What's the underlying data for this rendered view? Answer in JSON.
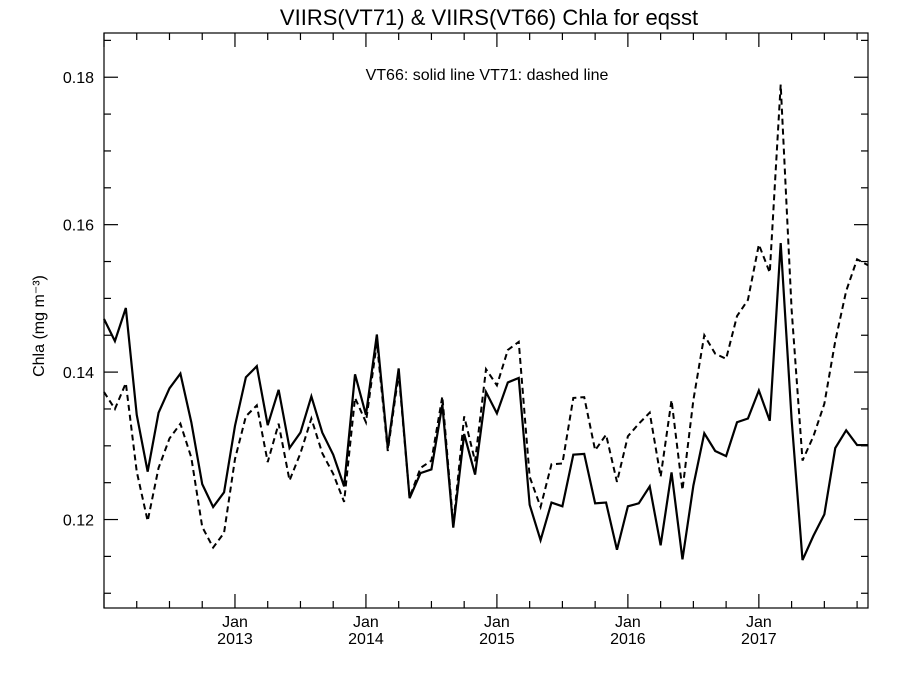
{
  "chart_data": {
    "type": "line",
    "title": "VIIRS(VT71) & VIIRS(VT66)  Chla for eqsst",
    "ylabel": "Chla (mg m⁻³)",
    "ylim": [
      0.108,
      0.186
    ],
    "annotation": "VT66: solid line   VT71: dashed line",
    "x_start": "2012-01",
    "x_end": "2017-11",
    "x_ticks": [
      {
        "month": "Jan",
        "year": "2013",
        "date": "2013-01"
      },
      {
        "month": "Jan",
        "year": "2014",
        "date": "2014-01"
      },
      {
        "month": "Jan",
        "year": "2015",
        "date": "2015-01"
      },
      {
        "month": "Jan",
        "year": "2016",
        "date": "2016-01"
      },
      {
        "month": "Jan",
        "year": "2017",
        "date": "2017-01"
      }
    ],
    "y_ticks": [
      0.12,
      0.14,
      0.16,
      0.18
    ],
    "y_tick_labels": [
      "0.12",
      "0.14",
      "0.16",
      "0.18"
    ],
    "x": [
      "2012-01",
      "2012-02",
      "2012-03",
      "2012-04",
      "2012-05",
      "2012-06",
      "2012-07",
      "2012-08",
      "2012-09",
      "2012-10",
      "2012-11",
      "2012-12",
      "2013-01",
      "2013-02",
      "2013-03",
      "2013-04",
      "2013-05",
      "2013-06",
      "2013-07",
      "2013-08",
      "2013-09",
      "2013-10",
      "2013-11",
      "2013-12",
      "2014-01",
      "2014-02",
      "2014-03",
      "2014-04",
      "2014-05",
      "2014-06",
      "2014-07",
      "2014-08",
      "2014-09",
      "2014-10",
      "2014-11",
      "2014-12",
      "2015-01",
      "2015-02",
      "2015-03",
      "2015-04",
      "2015-05",
      "2015-06",
      "2015-07",
      "2015-08",
      "2015-09",
      "2015-10",
      "2015-11",
      "2015-12",
      "2016-01",
      "2016-02",
      "2016-03",
      "2016-04",
      "2016-05",
      "2016-06",
      "2016-07",
      "2016-08",
      "2016-09",
      "2016-10",
      "2016-11",
      "2016-12",
      "2017-01",
      "2017-02",
      "2017-03",
      "2017-04",
      "2017-05",
      "2017-06",
      "2017-07",
      "2017-08",
      "2017-09",
      "2017-10",
      "2017-11"
    ],
    "series": [
      {
        "name": "VT66",
        "style": "solid",
        "values": [
          0.1472,
          0.1442,
          0.1487,
          0.1342,
          0.1265,
          0.1345,
          0.1378,
          0.1398,
          0.1332,
          0.1248,
          0.1217,
          0.1237,
          0.1327,
          0.1393,
          0.1408,
          0.1328,
          0.1376,
          0.1297,
          0.1318,
          0.1367,
          0.1318,
          0.1288,
          0.1245,
          0.1397,
          0.1342,
          0.1451,
          0.1297,
          0.1405,
          0.1229,
          0.1263,
          0.1268,
          0.1356,
          0.1189,
          0.1316,
          0.1261,
          0.1373,
          0.1344,
          0.1386,
          0.1392,
          0.122,
          0.1172,
          0.1223,
          0.1218,
          0.1288,
          0.1289,
          0.1222,
          0.1223,
          0.1159,
          0.1218,
          0.1222,
          0.1245,
          0.1165,
          0.1264,
          0.1146,
          0.1246,
          0.1317,
          0.1293,
          0.1286,
          0.1332,
          0.1337,
          0.1375,
          0.1334,
          0.1575,
          0.1336,
          0.1145,
          0.1178,
          0.1207,
          0.1297,
          0.1321,
          0.1301,
          0.1301
        ]
      },
      {
        "name": "VT71",
        "style": "dashed",
        "values": [
          0.1373,
          0.135,
          0.1385,
          0.1265,
          0.1198,
          0.127,
          0.131,
          0.133,
          0.1284,
          0.119,
          0.1162,
          0.1182,
          0.1282,
          0.134,
          0.1355,
          0.1278,
          0.133,
          0.1253,
          0.129,
          0.1337,
          0.129,
          0.1262,
          0.1224,
          0.1365,
          0.1332,
          0.144,
          0.1293,
          0.1398,
          0.123,
          0.127,
          0.128,
          0.1367,
          0.1193,
          0.134,
          0.1279,
          0.1404,
          0.1382,
          0.143,
          0.1441,
          0.1258,
          0.1217,
          0.1275,
          0.1276,
          0.1365,
          0.1366,
          0.1294,
          0.1315,
          0.1251,
          0.1313,
          0.133,
          0.1345,
          0.1258,
          0.1362,
          0.124,
          0.1362,
          0.145,
          0.1425,
          0.1418,
          0.1476,
          0.1498,
          0.1573,
          0.1535,
          0.179,
          0.1485,
          0.128,
          0.1313,
          0.1357,
          0.1442,
          0.151,
          0.1553,
          0.1545
        ]
      }
    ],
    "grid": false,
    "legend": "none"
  }
}
